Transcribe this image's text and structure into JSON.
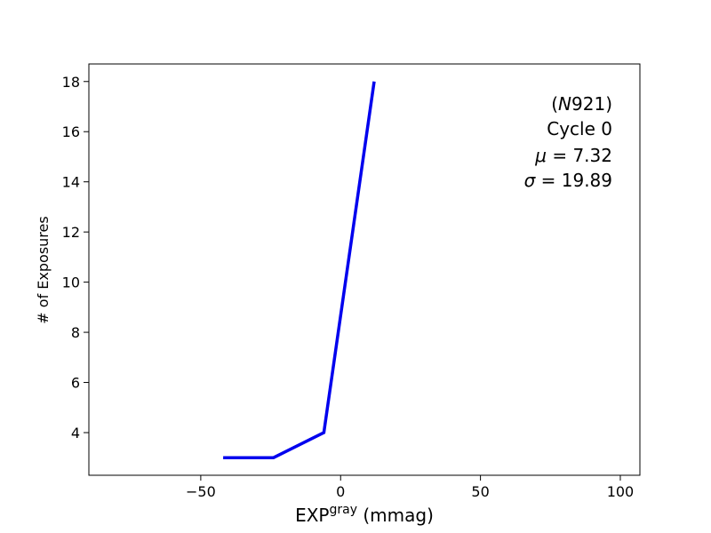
{
  "chart_data": {
    "type": "line",
    "xlabel_main": "EXP",
    "xlabel_sup": "gray",
    "xlabel_unit": " (mmag)",
    "ylabel": "# of Exposures",
    "xlim": [
      -90,
      107
    ],
    "ylim": [
      2.3,
      18.7
    ],
    "xticks": [
      -50,
      0,
      50,
      100
    ],
    "xtick_labels": [
      "−50",
      "0",
      "50",
      "100"
    ],
    "yticks": [
      4,
      6,
      8,
      10,
      12,
      14,
      16,
      18
    ],
    "ytick_labels": [
      "4",
      "6",
      "8",
      "10",
      "12",
      "14",
      "16",
      "18"
    ],
    "grid": false,
    "series": [
      {
        "color": "#0000ee",
        "x": [
          -42,
          -24,
          -6,
          12
        ],
        "y": [
          3,
          3,
          4,
          18
        ]
      }
    ],
    "annotation": {
      "line1_open": "(",
      "line1_var": "N",
      "line1_rest": "921)",
      "line2": "Cycle 0",
      "mu_symbol": "μ",
      "mu_value": " = 7.32",
      "sigma_symbol": "σ",
      "sigma_value": " = 19.89"
    }
  }
}
